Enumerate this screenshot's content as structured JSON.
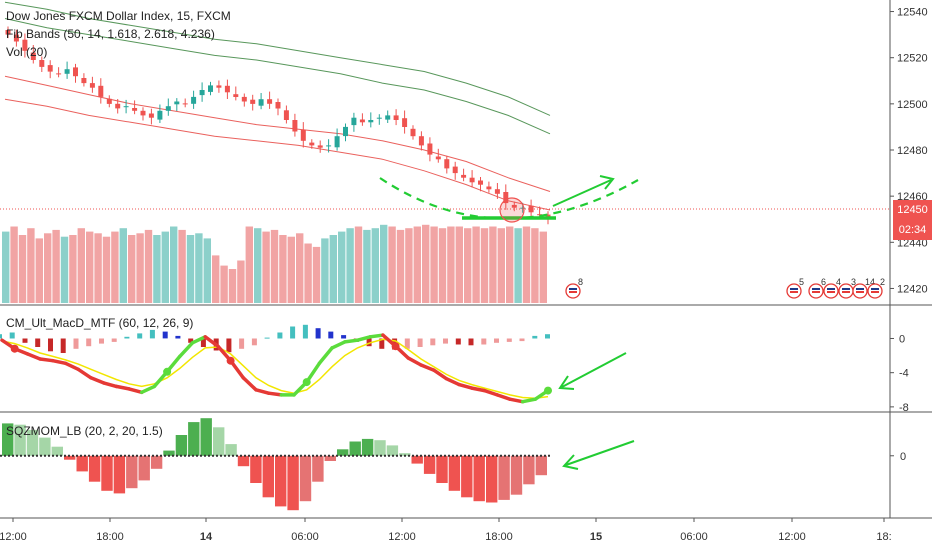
{
  "header": {
    "symbol_line": "Dow Jones FXCM Dollar Index, 15, FXCM",
    "fib_line": "Fib Bands (50, 14, 1.618, 2.618, 4.236)",
    "vol_line": "Vol (20)"
  },
  "price_tags": {
    "last_price": "12450",
    "countdown": "02:34"
  },
  "colors": {
    "up": "#26a69a",
    "down": "#ef5350",
    "vol_up": "#80cbc4",
    "vol_down": "#ef9a9a",
    "fib_outer": "#2e7d32",
    "fib_inner": "#e53935",
    "arrow": "#22cc33",
    "macd_up": "#5bdc3c",
    "macd_down": "#e53935",
    "macd_signal": "#f2e600",
    "hist_up_strong": "#2233cc",
    "hist_up_weak": "#44bfbf",
    "hist_down_strong": "#c62828",
    "hist_down_weak": "#ef9a9a",
    "mom_up": "#4caf50",
    "mom_down": "#ef5350",
    "mom_up_weak": "#a5d6a7",
    "mom_down_weak": "#e57373"
  },
  "chart_data": [
    {
      "type": "candlestick",
      "name": "Dow Jones FXCM Dollar Index, 15, FXCM",
      "yaxis_ticks": [
        12420,
        12440,
        12460,
        12480,
        12500,
        12520,
        12540
      ],
      "ylim": [
        12415,
        12545
      ],
      "last_price": 12450,
      "x_ticks": [
        "12:00",
        "18:00",
        "14",
        "06:00",
        "12:00",
        "18:00",
        "15",
        "06:00",
        "12:00",
        "18:"
      ],
      "close_series": [
        12530,
        12527,
        12523,
        12519,
        12516,
        12514,
        12513,
        12515,
        12512,
        12509,
        12507,
        12503,
        12500,
        12498,
        12499,
        12497,
        12495,
        12494,
        12497,
        12499,
        12501,
        12500,
        12503,
        12506,
        12508,
        12507,
        12505,
        12503,
        12501,
        12500,
        12502,
        12500,
        12498,
        12493,
        12488,
        12484,
        12482,
        12481,
        12482,
        12486,
        12490,
        12494,
        12492,
        12493,
        12494,
        12495,
        12493,
        12490,
        12486,
        12482,
        12478,
        12476,
        12472,
        12470,
        12468,
        12466,
        12465,
        12463,
        12461,
        12457,
        12455,
        12455,
        12453,
        12452,
        12450
      ],
      "fib_bands": [
        {
          "name": "upper outer",
          "values": [
            12544,
            12541,
            12537,
            12534,
            12531,
            12528,
            12526,
            12523,
            12520,
            12517,
            12514,
            12509,
            12503,
            12495
          ]
        },
        {
          "name": "upper inner",
          "values": [
            12537,
            12533,
            12530,
            12527,
            12524,
            12521,
            12519,
            12516,
            12513,
            12509,
            12506,
            12501,
            12495,
            12487
          ]
        },
        {
          "name": "basis",
          "values": [
            12512,
            12508,
            12504,
            12500,
            12497,
            12494,
            12491,
            12489,
            12487,
            12484,
            12480,
            12475,
            12468,
            12462
          ]
        },
        {
          "name": "lower band",
          "values": [
            12502,
            12499,
            12495,
            12492,
            12489,
            12486,
            12484,
            12482,
            12479,
            12476,
            12471,
            12465,
            12458,
            12454
          ]
        }
      ],
      "volume_relative": [
        0.42,
        0.45,
        0.4,
        0.44,
        0.38,
        0.41,
        0.43,
        0.39,
        0.4,
        0.44,
        0.42,
        0.41,
        0.39,
        0.42,
        0.44,
        0.4,
        0.41,
        0.43,
        0.4,
        0.42,
        0.45,
        0.43,
        0.4,
        0.41,
        0.38,
        0.28,
        0.22,
        0.2,
        0.25,
        0.45,
        0.44,
        0.42,
        0.43,
        0.4,
        0.39,
        0.41,
        0.35,
        0.33,
        0.38,
        0.4,
        0.42,
        0.44,
        0.45,
        0.43,
        0.44,
        0.46,
        0.45,
        0.43,
        0.44,
        0.45,
        0.46,
        0.45,
        0.44,
        0.45,
        0.45,
        0.44,
        0.45,
        0.44,
        0.45,
        0.44,
        0.45,
        0.44,
        0.45,
        0.44,
        0.42
      ],
      "event_badges": [
        "8",
        "5",
        "6",
        "4",
        "3",
        "14",
        "2"
      ]
    },
    {
      "type": "line",
      "name": "CM_Ult_MacD_MTF (60, 12, 26, 9)",
      "yaxis_ticks": [
        0,
        -4,
        -8
      ],
      "ylim": [
        -8.6,
        3.8
      ],
      "macd": [
        -0.2,
        -1.2,
        -1.8,
        -2.4,
        -2.6,
        -2.9,
        -3.6,
        -4.6,
        -5.2,
        -5.6,
        -5.9,
        -6.3,
        -5.6,
        -3.9,
        -2.1,
        -0.5,
        0.2,
        -0.9,
        -2.6,
        -4.6,
        -6.0,
        -6.4,
        -6.6,
        -6.6,
        -5.1,
        -2.9,
        -1.1,
        -0.4,
        -0.2,
        0.2,
        0.4,
        -0.9,
        -2.3,
        -3.1,
        -3.7,
        -4.7,
        -5.4,
        -5.8,
        -6.1,
        -6.6,
        -7.1,
        -7.4,
        -7.1,
        -6.1
      ],
      "signal": [
        -0.3,
        -0.6,
        -1.1,
        -1.7,
        -2.1,
        -2.5,
        -3.0,
        -3.6,
        -4.2,
        -4.8,
        -5.3,
        -5.6,
        -5.3,
        -4.6,
        -3.5,
        -2.2,
        -1.1,
        -1.0,
        -1.8,
        -3.2,
        -4.6,
        -5.5,
        -6.1,
        -6.4,
        -6.0,
        -4.8,
        -3.3,
        -2.0,
        -1.1,
        -0.5,
        -0.1,
        -0.3,
        -1.3,
        -2.4,
        -3.3,
        -4.2,
        -4.9,
        -5.4,
        -5.8,
        -6.2,
        -6.6,
        -6.9,
        -7.0,
        -6.8
      ],
      "histogram": [
        0.5,
        0.7,
        -0.5,
        -1.0,
        -1.5,
        -1.7,
        -1.2,
        -0.9,
        -0.6,
        -0.4,
        0.2,
        0.6,
        1.0,
        0.8,
        0.3,
        -0.5,
        -1.0,
        -1.4,
        -1.6,
        -1.2,
        -0.8,
        0.1,
        0.7,
        1.4,
        1.6,
        1.2,
        0.8,
        0.4,
        -0.4,
        -0.9,
        -1.2,
        -1.3,
        -1.2,
        -1.0,
        -0.8,
        -0.6,
        -0.7,
        -0.8,
        -0.7,
        -0.5,
        -0.4,
        -0.3,
        0.3,
        0.5
      ]
    },
    {
      "type": "bar",
      "name": "SQZMOM_LB (20, 2, 20, 1.5)",
      "yaxis_ticks": [
        0
      ],
      "ylim": [
        -4.8,
        3.3
      ],
      "values": [
        2.5,
        2.4,
        2.0,
        1.4,
        0.7,
        -0.3,
        -1.2,
        -2.0,
        -2.7,
        -2.9,
        -2.5,
        -1.9,
        -1.0,
        0.4,
        1.6,
        2.6,
        2.9,
        2.2,
        0.9,
        -0.8,
        -2.1,
        -3.2,
        -3.9,
        -4.2,
        -3.5,
        -2.0,
        -0.4,
        0.5,
        1.1,
        1.3,
        1.2,
        0.8,
        0.2,
        -0.6,
        -1.4,
        -2.1,
        -2.7,
        -3.2,
        -3.5,
        -3.6,
        -3.4,
        -3.0,
        -2.2,
        -1.5
      ]
    }
  ]
}
